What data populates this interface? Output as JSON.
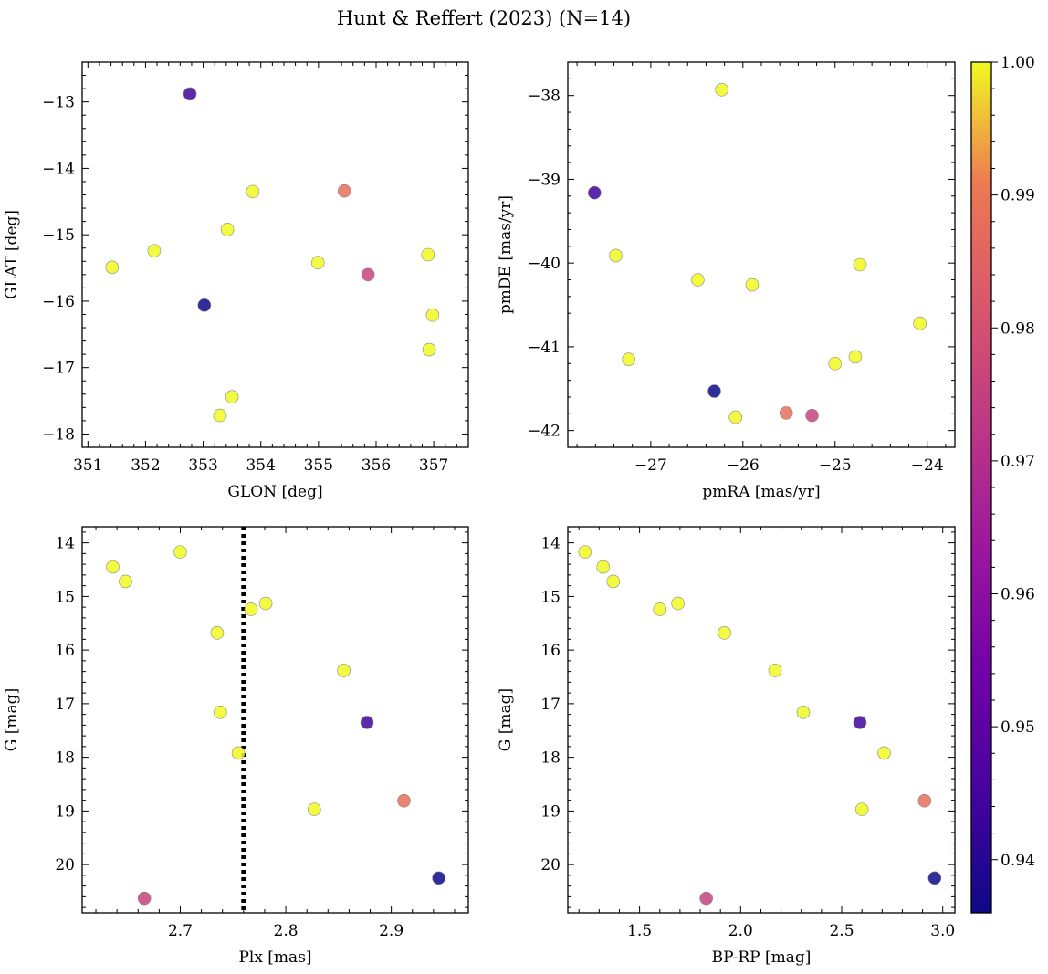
{
  "figure": {
    "title": "Hunt & Reffert (2023) (N=14)"
  },
  "colorbar": {
    "colormap": "plasma",
    "min": 0.936,
    "max": 1.0,
    "ticks": [
      0.94,
      0.95,
      0.96,
      0.97,
      0.98,
      0.99,
      1.0
    ],
    "tick_labels": [
      "0.94",
      "0.95",
      "0.96",
      "0.97",
      "0.98",
      "0.99",
      "1.00"
    ]
  },
  "chart_data": [
    {
      "id": "glon-glat",
      "type": "scatter",
      "xlabel": "GLON [deg]",
      "ylabel": "GLAT [deg]",
      "xlim": [
        350.9,
        357.6
      ],
      "ylim": [
        -18.2,
        -12.4
      ],
      "y_inverted": false,
      "xticks": [
        351,
        352,
        353,
        354,
        355,
        356,
        357
      ],
      "xtick_labels": [
        "351",
        "352",
        "353",
        "354",
        "355",
        "356",
        "357"
      ],
      "yticks": [
        -18,
        -17,
        -16,
        -15,
        -14,
        -13
      ],
      "ytick_labels": [
        "−18",
        "−17",
        "−16",
        "−15",
        "−14",
        "−13"
      ],
      "points": [
        {
          "x": 351.42,
          "y": -15.49,
          "c": 1.0
        },
        {
          "x": 352.15,
          "y": -15.24,
          "c": 1.0
        },
        {
          "x": 352.77,
          "y": -12.88,
          "c": 0.944
        },
        {
          "x": 353.02,
          "y": -16.06,
          "c": 0.936
        },
        {
          "x": 353.29,
          "y": -17.72,
          "c": 1.0
        },
        {
          "x": 353.42,
          "y": -14.92,
          "c": 1.0
        },
        {
          "x": 353.5,
          "y": -17.44,
          "c": 1.0
        },
        {
          "x": 353.86,
          "y": -14.35,
          "c": 1.0
        },
        {
          "x": 354.99,
          "y": -15.42,
          "c": 1.0
        },
        {
          "x": 355.45,
          "y": -14.34,
          "c": 0.988
        },
        {
          "x": 355.86,
          "y": -15.6,
          "c": 0.976
        },
        {
          "x": 356.9,
          "y": -15.3,
          "c": 1.0
        },
        {
          "x": 356.92,
          "y": -16.73,
          "c": 1.0
        },
        {
          "x": 356.98,
          "y": -16.21,
          "c": 1.0
        }
      ]
    },
    {
      "id": "pmra-pmde",
      "type": "scatter",
      "xlabel": "pmRA [mas/yr]",
      "ylabel": "pmDE [mas/yr]",
      "xlim": [
        -27.9,
        -23.7
      ],
      "ylim": [
        -42.2,
        -37.6
      ],
      "y_inverted": false,
      "xticks": [
        -27,
        -26,
        -25,
        -24
      ],
      "xtick_labels": [
        "−27",
        "−26",
        "−25",
        "−24"
      ],
      "yticks": [
        -42,
        -41,
        -40,
        -39,
        -38
      ],
      "ytick_labels": [
        "−42",
        "−41",
        "−40",
        "−39",
        "−38"
      ],
      "points": [
        {
          "x": -26.23,
          "y": -37.93,
          "c": 1.0
        },
        {
          "x": -27.61,
          "y": -39.16,
          "c": 0.944
        },
        {
          "x": -27.38,
          "y": -39.91,
          "c": 1.0
        },
        {
          "x": -26.49,
          "y": -40.2,
          "c": 1.0
        },
        {
          "x": -25.9,
          "y": -40.26,
          "c": 1.0
        },
        {
          "x": -24.73,
          "y": -40.02,
          "c": 1.0
        },
        {
          "x": -24.08,
          "y": -40.72,
          "c": 1.0
        },
        {
          "x": -27.24,
          "y": -41.15,
          "c": 1.0
        },
        {
          "x": -25.0,
          "y": -41.2,
          "c": 1.0
        },
        {
          "x": -24.78,
          "y": -41.12,
          "c": 1.0
        },
        {
          "x": -26.31,
          "y": -41.53,
          "c": 0.936
        },
        {
          "x": -26.08,
          "y": -41.84,
          "c": 1.0
        },
        {
          "x": -25.53,
          "y": -41.79,
          "c": 0.988
        },
        {
          "x": -25.25,
          "y": -41.82,
          "c": 0.976
        }
      ]
    },
    {
      "id": "plx-g",
      "type": "scatter",
      "xlabel": "Plx [mas]",
      "ylabel": "G [mag]",
      "xlim": [
        2.607,
        2.973
      ],
      "ylim": [
        20.9,
        13.7
      ],
      "y_inverted": true,
      "xticks": [
        2.7,
        2.8,
        2.9
      ],
      "xtick_labels": [
        "2.7",
        "2.8",
        "2.9"
      ],
      "yticks": [
        14,
        15,
        16,
        17,
        18,
        19,
        20
      ],
      "ytick_labels": [
        "14",
        "15",
        "16",
        "17",
        "18",
        "19",
        "20"
      ],
      "vline": {
        "x": 2.76,
        "style": "dotted"
      },
      "points": [
        {
          "x": 2.7,
          "y": 14.17,
          "c": 1.0
        },
        {
          "x": 2.636,
          "y": 14.45,
          "c": 1.0
        },
        {
          "x": 2.648,
          "y": 14.72,
          "c": 1.0
        },
        {
          "x": 2.767,
          "y": 15.24,
          "c": 1.0
        },
        {
          "x": 2.781,
          "y": 15.13,
          "c": 1.0
        },
        {
          "x": 2.735,
          "y": 15.68,
          "c": 1.0
        },
        {
          "x": 2.855,
          "y": 16.38,
          "c": 1.0
        },
        {
          "x": 2.738,
          "y": 17.16,
          "c": 1.0
        },
        {
          "x": 2.877,
          "y": 17.35,
          "c": 0.944
        },
        {
          "x": 2.755,
          "y": 17.92,
          "c": 1.0
        },
        {
          "x": 2.827,
          "y": 18.97,
          "c": 1.0
        },
        {
          "x": 2.912,
          "y": 18.81,
          "c": 0.988
        },
        {
          "x": 2.945,
          "y": 20.25,
          "c": 0.936
        },
        {
          "x": 2.666,
          "y": 20.63,
          "c": 0.976
        }
      ]
    },
    {
      "id": "bprp-g",
      "type": "scatter",
      "xlabel": "BP-RP [mag]",
      "ylabel": "G [mag]",
      "xlim": [
        1.145,
        3.06
      ],
      "ylim": [
        20.9,
        13.7
      ],
      "y_inverted": true,
      "xticks": [
        1.5,
        2.0,
        2.5,
        3.0
      ],
      "xtick_labels": [
        "1.5",
        "2.0",
        "2.5",
        "3.0"
      ],
      "yticks": [
        14,
        15,
        16,
        17,
        18,
        19,
        20
      ],
      "ytick_labels": [
        "14",
        "15",
        "16",
        "17",
        "18",
        "19",
        "20"
      ],
      "points": [
        {
          "x": 1.23,
          "y": 14.17,
          "c": 1.0
        },
        {
          "x": 1.32,
          "y": 14.45,
          "c": 1.0
        },
        {
          "x": 1.37,
          "y": 14.72,
          "c": 1.0
        },
        {
          "x": 1.6,
          "y": 15.24,
          "c": 1.0
        },
        {
          "x": 1.69,
          "y": 15.13,
          "c": 1.0
        },
        {
          "x": 1.92,
          "y": 15.68,
          "c": 1.0
        },
        {
          "x": 2.17,
          "y": 16.38,
          "c": 1.0
        },
        {
          "x": 2.31,
          "y": 17.16,
          "c": 1.0
        },
        {
          "x": 2.59,
          "y": 17.35,
          "c": 0.944
        },
        {
          "x": 2.71,
          "y": 17.92,
          "c": 1.0
        },
        {
          "x": 2.6,
          "y": 18.97,
          "c": 1.0
        },
        {
          "x": 2.91,
          "y": 18.81,
          "c": 0.988
        },
        {
          "x": 2.96,
          "y": 20.25,
          "c": 0.936
        },
        {
          "x": 1.83,
          "y": 20.63,
          "c": 0.976
        }
      ]
    }
  ]
}
